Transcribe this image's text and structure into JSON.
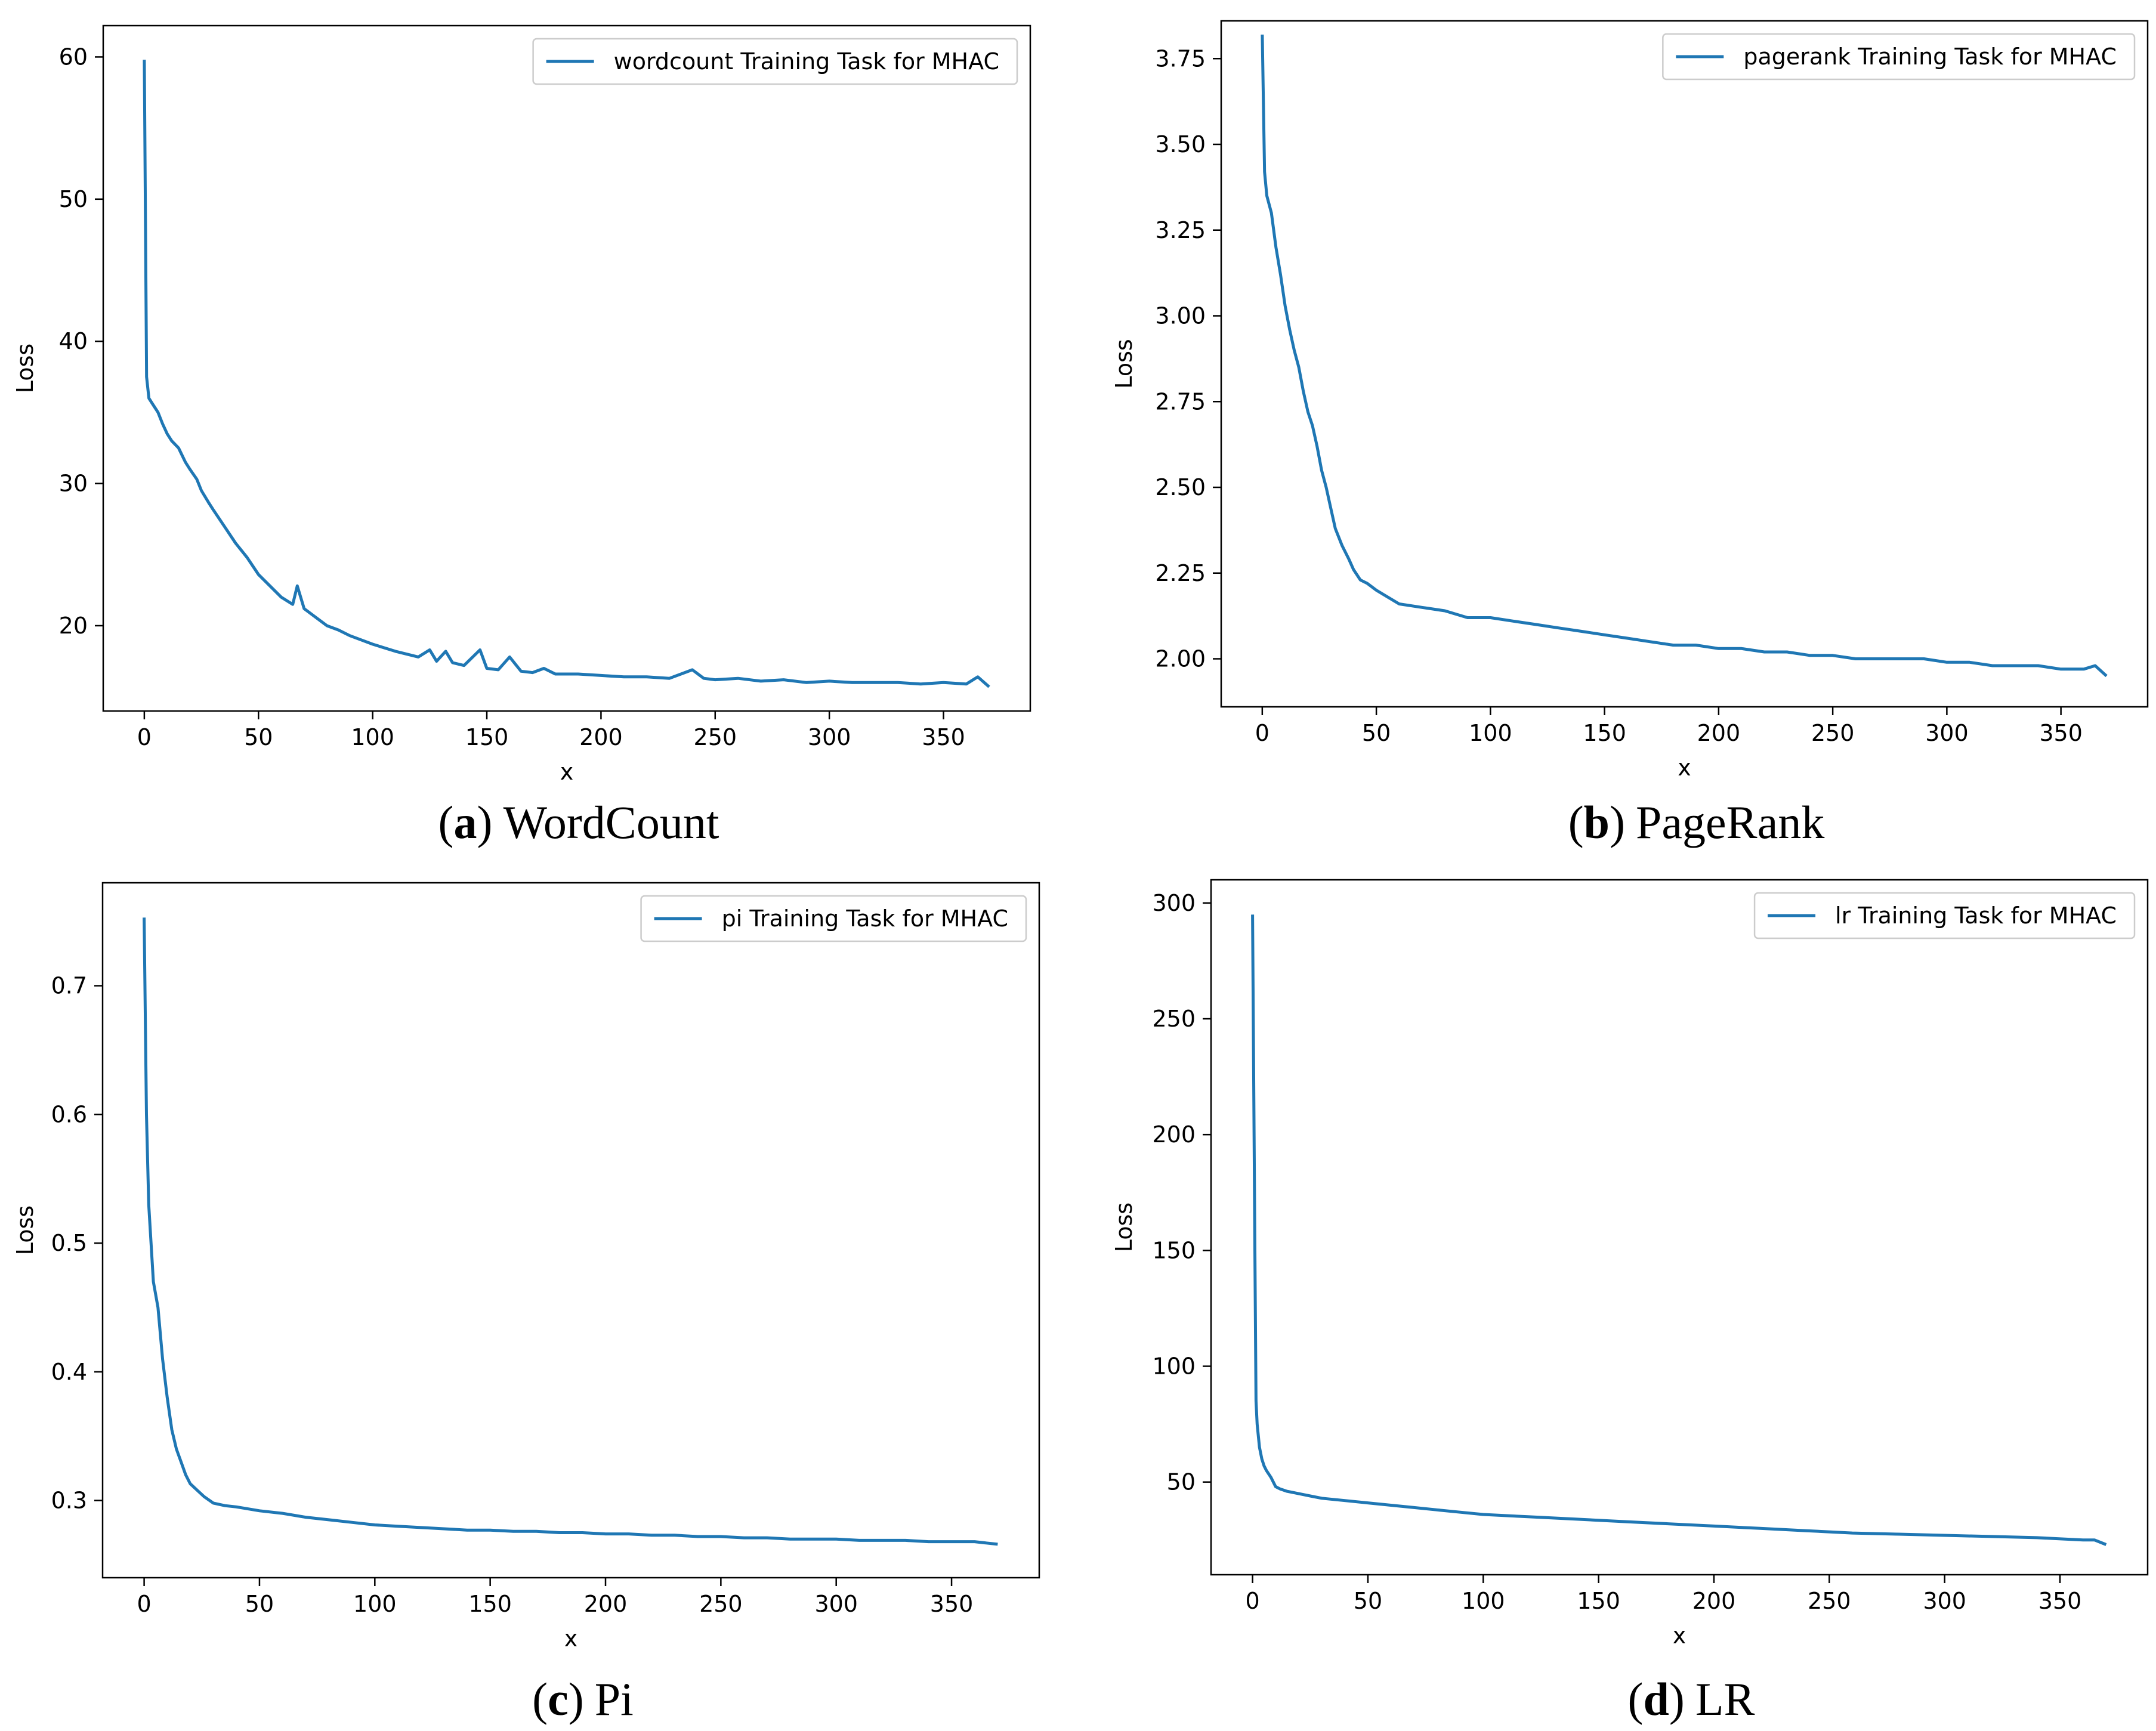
{
  "line_color": "#1f77b4",
  "chart_data": [
    {
      "id": "a",
      "type": "line",
      "xlabel": "x",
      "ylabel": "Loss",
      "legend": "wordcount Training Task for MHAC",
      "legend_position": "top-right",
      "caption_letter": "a",
      "caption_open": "(",
      "caption_close": ")",
      "caption_text": "WordCount",
      "xlim": [
        -18,
        388
      ],
      "ylim": [
        14,
        62.2
      ],
      "xticks": [
        0,
        50,
        100,
        150,
        200,
        250,
        300,
        350
      ],
      "xtick_labels": [
        "0",
        "50",
        "100",
        "150",
        "200",
        "250",
        "300",
        "350"
      ],
      "yticks": [
        20,
        30,
        40,
        50,
        60
      ],
      "ytick_labels": [
        "20",
        "30",
        "40",
        "50",
        "60"
      ],
      "series": [
        {
          "name": "wordcount Training Task for MHAC",
          "x": [
            0,
            1,
            2,
            4,
            6,
            8,
            10,
            12,
            15,
            18,
            20,
            23,
            25,
            28,
            30,
            35,
            40,
            45,
            50,
            55,
            60,
            65,
            67,
            70,
            75,
            80,
            85,
            90,
            95,
            100,
            110,
            120,
            125,
            128,
            132,
            135,
            140,
            147,
            150,
            155,
            160,
            165,
            170,
            175,
            180,
            190,
            200,
            210,
            220,
            230,
            240,
            245,
            250,
            260,
            270,
            280,
            290,
            300,
            310,
            320,
            330,
            340,
            350,
            360,
            365,
            370
          ],
          "y": [
            59.8,
            37.5,
            36.0,
            35.5,
            35.0,
            34.2,
            33.5,
            33.0,
            32.5,
            31.5,
            31.0,
            30.3,
            29.5,
            28.7,
            28.2,
            27.0,
            25.8,
            24.8,
            23.6,
            22.8,
            22.0,
            21.5,
            22.8,
            21.2,
            20.6,
            20.0,
            19.7,
            19.3,
            19.0,
            18.7,
            18.2,
            17.8,
            18.3,
            17.5,
            18.2,
            17.4,
            17.2,
            18.3,
            17.0,
            16.9,
            17.8,
            16.8,
            16.7,
            17.0,
            16.6,
            16.6,
            16.5,
            16.4,
            16.4,
            16.3,
            16.9,
            16.3,
            16.2,
            16.3,
            16.1,
            16.2,
            16.0,
            16.1,
            16.0,
            16.0,
            16.0,
            15.9,
            16.0,
            15.9,
            16.4,
            15.7
          ]
        }
      ]
    },
    {
      "id": "b",
      "type": "line",
      "xlabel": "x",
      "ylabel": "Loss",
      "legend": "pagerank Training Task for MHAC",
      "legend_position": "top-right",
      "caption_letter": "b",
      "caption_open": "(",
      "caption_close": ")",
      "caption_text": "PageRank",
      "xlim": [
        -18,
        388
      ],
      "ylim": [
        1.86,
        3.86
      ],
      "xticks": [
        0,
        50,
        100,
        150,
        200,
        250,
        300,
        350
      ],
      "xtick_labels": [
        "0",
        "50",
        "100",
        "150",
        "200",
        "250",
        "300",
        "350"
      ],
      "yticks": [
        2.0,
        2.25,
        2.5,
        2.75,
        3.0,
        3.25,
        3.5,
        3.75
      ],
      "ytick_labels": [
        "2.00",
        "2.25",
        "2.50",
        "2.75",
        "3.00",
        "3.25",
        "3.50",
        "3.75"
      ],
      "series": [
        {
          "name": "pagerank Training Task for MHAC",
          "x": [
            0,
            1,
            2,
            4,
            6,
            8,
            10,
            12,
            14,
            16,
            18,
            20,
            22,
            24,
            26,
            28,
            30,
            32,
            35,
            38,
            40,
            43,
            46,
            50,
            55,
            60,
            70,
            80,
            90,
            100,
            110,
            120,
            130,
            140,
            150,
            160,
            170,
            180,
            190,
            200,
            210,
            220,
            230,
            240,
            250,
            260,
            270,
            280,
            290,
            300,
            310,
            320,
            330,
            340,
            350,
            360,
            365,
            370
          ],
          "y": [
            3.82,
            3.42,
            3.35,
            3.3,
            3.2,
            3.12,
            3.03,
            2.96,
            2.9,
            2.85,
            2.78,
            2.72,
            2.68,
            2.62,
            2.55,
            2.5,
            2.44,
            2.38,
            2.33,
            2.29,
            2.26,
            2.23,
            2.22,
            2.2,
            2.18,
            2.16,
            2.15,
            2.14,
            2.12,
            2.12,
            2.11,
            2.1,
            2.09,
            2.08,
            2.07,
            2.06,
            2.05,
            2.04,
            2.04,
            2.03,
            2.03,
            2.02,
            2.02,
            2.01,
            2.01,
            2.0,
            2.0,
            2.0,
            2.0,
            1.99,
            1.99,
            1.98,
            1.98,
            1.98,
            1.97,
            1.97,
            1.98,
            1.95
          ]
        }
      ]
    },
    {
      "id": "c",
      "type": "line",
      "xlabel": "x",
      "ylabel": "Loss",
      "legend": "pi Training Task for MHAC",
      "legend_position": "top-right",
      "caption_letter": "c",
      "caption_open": "(",
      "caption_close": ")",
      "caption_text": "Pi",
      "xlim": [
        -18,
        388
      ],
      "ylim": [
        0.24,
        0.78
      ],
      "xticks": [
        0,
        50,
        100,
        150,
        200,
        250,
        300,
        350
      ],
      "xtick_labels": [
        "0",
        "50",
        "100",
        "150",
        "200",
        "250",
        "300",
        "350"
      ],
      "yticks": [
        0.3,
        0.4,
        0.5,
        0.6,
        0.7
      ],
      "ytick_labels": [
        "0.3",
        "0.4",
        "0.5",
        "0.6",
        "0.7"
      ],
      "series": [
        {
          "name": "pi Training Task for MHAC",
          "x": [
            0,
            1,
            2,
            3,
            4,
            6,
            8,
            10,
            12,
            14,
            16,
            18,
            20,
            23,
            26,
            30,
            35,
            40,
            50,
            60,
            70,
            80,
            90,
            100,
            110,
            120,
            130,
            140,
            150,
            160,
            170,
            180,
            190,
            200,
            210,
            220,
            230,
            240,
            250,
            260,
            270,
            280,
            290,
            300,
            310,
            320,
            330,
            340,
            350,
            360,
            365,
            370
          ],
          "y": [
            0.753,
            0.6,
            0.53,
            0.5,
            0.47,
            0.45,
            0.41,
            0.38,
            0.355,
            0.34,
            0.33,
            0.32,
            0.313,
            0.308,
            0.303,
            0.298,
            0.296,
            0.295,
            0.292,
            0.29,
            0.287,
            0.285,
            0.283,
            0.281,
            0.28,
            0.279,
            0.278,
            0.277,
            0.277,
            0.276,
            0.276,
            0.275,
            0.275,
            0.274,
            0.274,
            0.273,
            0.273,
            0.272,
            0.272,
            0.271,
            0.271,
            0.27,
            0.27,
            0.27,
            0.269,
            0.269,
            0.269,
            0.268,
            0.268,
            0.268,
            0.267,
            0.266
          ]
        }
      ]
    },
    {
      "id": "d",
      "type": "line",
      "xlabel": "x",
      "ylabel": "Loss",
      "legend": "lr Training Task for MHAC",
      "legend_position": "top-right",
      "caption_letter": "d",
      "caption_open": "(",
      "caption_close": ")",
      "caption_text": "LR",
      "xlim": [
        -18,
        388
      ],
      "ylim": [
        10,
        310
      ],
      "xticks": [
        0,
        50,
        100,
        150,
        200,
        250,
        300,
        350
      ],
      "xtick_labels": [
        "0",
        "50",
        "100",
        "150",
        "200",
        "250",
        "300",
        "350"
      ],
      "yticks": [
        50,
        100,
        150,
        200,
        250,
        300
      ],
      "ytick_labels": [
        "50",
        "100",
        "150",
        "200",
        "250",
        "300"
      ],
      "series": [
        {
          "name": "lr Training Task for MHAC",
          "x": [
            0,
            1,
            1.5,
            2,
            3,
            4,
            5,
            6,
            8,
            10,
            12,
            15,
            20,
            25,
            30,
            40,
            50,
            60,
            70,
            80,
            90,
            100,
            120,
            140,
            160,
            180,
            200,
            220,
            240,
            260,
            280,
            300,
            320,
            340,
            360,
            365,
            370
          ],
          "y": [
            295,
            150,
            85,
            75,
            65,
            60,
            57,
            55,
            52,
            48,
            47,
            46,
            45,
            44,
            43,
            42,
            41,
            40,
            39,
            38,
            37,
            36,
            35,
            34,
            33,
            32,
            31,
            30,
            29,
            28,
            27.5,
            27,
            26.5,
            26,
            25,
            25,
            23
          ]
        }
      ]
    }
  ]
}
